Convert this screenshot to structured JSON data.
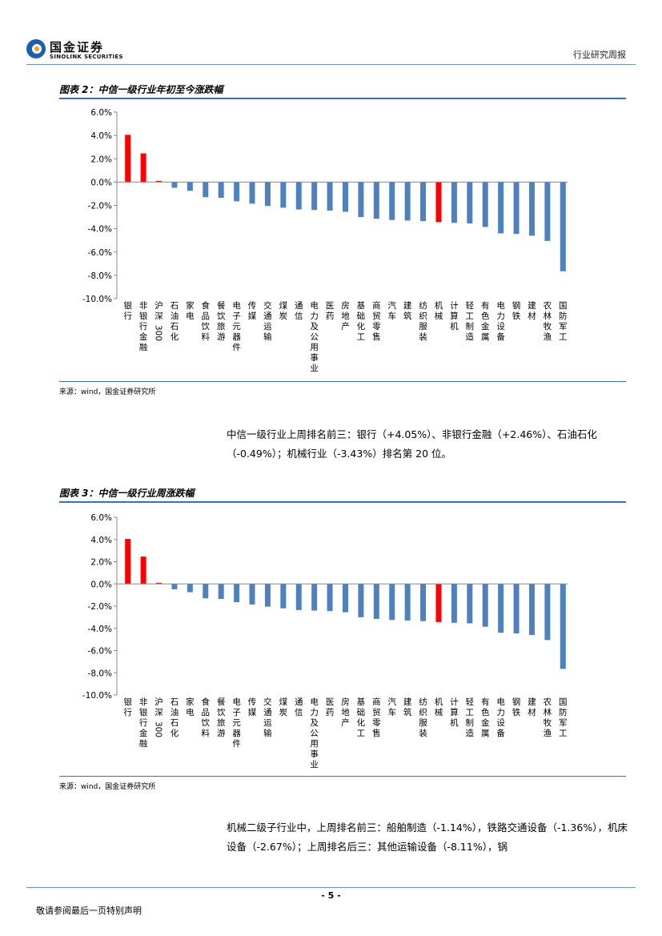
{
  "header": {
    "logo_cn": "国金证券",
    "logo_en": "SINOLINK SECURITIES",
    "report_type": "行业研究周报"
  },
  "figure2": {
    "title": "图表 2：中信一级行业年初至今涨跌幅",
    "source": "来源：wind，国金证券研究所"
  },
  "figure3": {
    "title": "图表 3：中信一级行业周涨跌幅",
    "source": "来源：wind，国金证券研究所"
  },
  "para1": "中信一级行业上周排名前三：银行（+4.05%）、非银行金融（+2.46%）、石油石化（-0.49%）；机械行业（-3.43%）排名第 20 位。",
  "para2": "机械二级子行业中，上周排名前三：船舶制造（-1.14%），铁路交通设备（-1.36%），机床设备（-2.67%）；上周排名后三：其他运输设备（-8.11%），锅",
  "footer": {
    "page": "- 5 -",
    "disclaimer": "敬请参阅最后一页特别声明"
  },
  "colors": {
    "bar": "#4f81bd",
    "highlight": "#ff0000"
  },
  "chart_data": [
    {
      "type": "bar",
      "title": "图表 2：中信一级行业年初至今涨跌幅",
      "ylim": [
        -10,
        6
      ],
      "yticks": [
        "6.0%",
        "4.0%",
        "2.0%",
        "0.0%",
        "-2.0%",
        "-4.0%",
        "-6.0%",
        "-8.0%",
        "-10.0%"
      ],
      "categories": [
        "银行",
        "非银行金融",
        "沪深300",
        "石油石化",
        "家电",
        "食品饮料",
        "餐饮旅游",
        "电子元器件",
        "传媒",
        "交通运输",
        "煤炭",
        "通信",
        "电力及公用事业",
        "医药",
        "房地产",
        "基础化工",
        "商贸零售",
        "汽车",
        "建筑",
        "纺织服装",
        "机械",
        "计算机",
        "轻工制造",
        "有色金属",
        "电力设备",
        "钢铁",
        "建材",
        "农林牧渔",
        "国防军工"
      ],
      "values": [
        4.05,
        2.46,
        0.1,
        -0.49,
        -0.75,
        -1.3,
        -1.35,
        -1.65,
        -1.85,
        -2.05,
        -2.2,
        -2.35,
        -2.4,
        -2.45,
        -2.55,
        -3.0,
        -3.15,
        -3.25,
        -3.3,
        -3.35,
        -3.43,
        -3.5,
        -3.55,
        -3.85,
        -4.4,
        -4.45,
        -4.6,
        -5.05,
        -7.65
      ],
      "highlight": [
        "银行",
        "非银行金融",
        "沪深300",
        "机械"
      ]
    },
    {
      "type": "bar",
      "title": "图表 3：中信一级行业周涨跌幅",
      "ylim": [
        -10,
        6
      ],
      "yticks": [
        "6.0%",
        "4.0%",
        "2.0%",
        "0.0%",
        "-2.0%",
        "-4.0%",
        "-6.0%",
        "-8.0%",
        "-10.0%"
      ],
      "categories": [
        "银行",
        "非银行金融",
        "沪深300",
        "石油石化",
        "家电",
        "食品饮料",
        "餐饮旅游",
        "电子元器件",
        "传媒",
        "交通运输",
        "煤炭",
        "通信",
        "电力及公用事业",
        "医药",
        "房地产",
        "基础化工",
        "商贸零售",
        "汽车",
        "建筑",
        "纺织服装",
        "机械",
        "计算机",
        "轻工制造",
        "有色金属",
        "电力设备",
        "钢铁",
        "建材",
        "农林牧渔",
        "国防军工"
      ],
      "values": [
        4.05,
        2.46,
        0.1,
        -0.49,
        -0.75,
        -1.3,
        -1.35,
        -1.65,
        -1.85,
        -2.05,
        -2.2,
        -2.35,
        -2.4,
        -2.45,
        -2.55,
        -3.0,
        -3.15,
        -3.25,
        -3.3,
        -3.35,
        -3.43,
        -3.5,
        -3.55,
        -3.85,
        -4.4,
        -4.45,
        -4.6,
        -5.05,
        -7.65
      ],
      "highlight": [
        "银行",
        "非银行金融",
        "沪深300",
        "机械"
      ]
    }
  ]
}
